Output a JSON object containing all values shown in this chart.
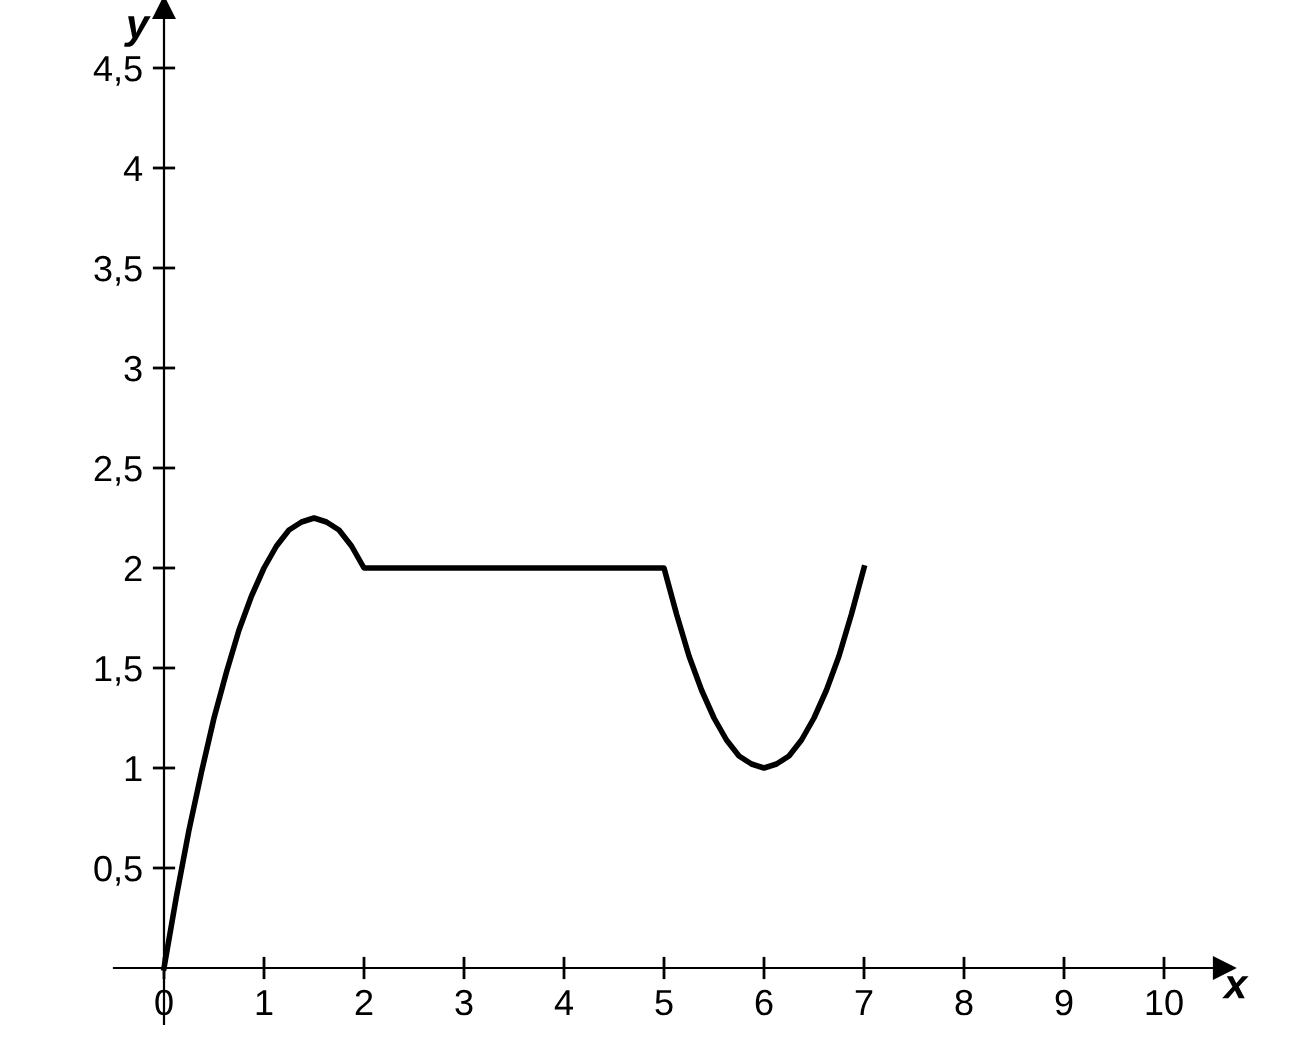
{
  "chart_data": {
    "type": "line",
    "xlabel": "x",
    "ylabel": "y",
    "x": [
      0,
      0.125,
      0.25,
      0.375,
      0.5,
      0.625,
      0.75,
      0.875,
      1,
      1.125,
      1.25,
      1.375,
      1.5,
      1.625,
      1.75,
      1.875,
      2,
      5,
      5.125,
      5.25,
      5.375,
      5.5,
      5.625,
      5.75,
      5.875,
      6,
      6.125,
      6.25,
      6.375,
      6.5,
      6.625,
      6.75,
      6.875,
      7
    ],
    "series": [
      {
        "color": "#000000",
        "values": [
          0,
          0.36,
          0.69,
          0.98,
          1.25,
          1.48,
          1.69,
          1.86,
          2,
          2.11,
          2.19,
          2.23,
          2.25,
          2.23,
          2.19,
          2.11,
          2,
          2,
          1.77,
          1.56,
          1.39,
          1.25,
          1.14,
          1.06,
          1.02,
          1,
          1.02,
          1.06,
          1.14,
          1.25,
          1.39,
          1.56,
          1.77,
          2
        ]
      }
    ],
    "xlim": [
      -0.5,
      10.6
    ],
    "ylim": [
      -0.28,
      4.8
    ],
    "xticks": [
      0,
      1,
      2,
      3,
      4,
      5,
      6,
      7,
      8,
      9,
      10
    ],
    "yticks": [
      {
        "value": 0.5,
        "label": "0,5"
      },
      1,
      {
        "value": 1.5,
        "label": "1,5"
      },
      2,
      {
        "value": 2.5,
        "label": "2,5"
      },
      3,
      {
        "value": 3.5,
        "label": "3,5"
      },
      4,
      {
        "value": 4.5,
        "label": "4,5"
      }
    ],
    "grid": false,
    "marker": "none",
    "line_style": "solid"
  }
}
